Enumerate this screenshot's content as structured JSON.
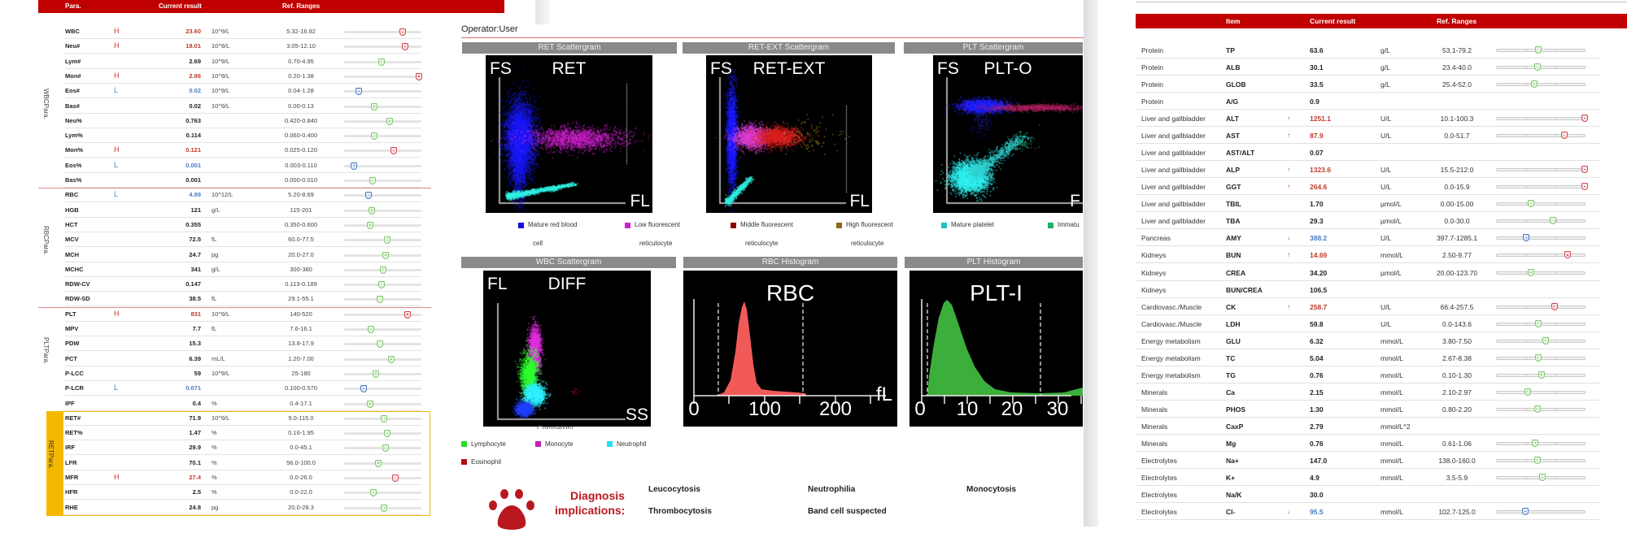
{
  "cbc": {
    "header": {
      "para": "Para.",
      "current": "Current result",
      "ref": "Ref. Ranges"
    },
    "groups": {
      "wbc": [
        "WBC",
        "Para."
      ],
      "rbc": [
        "RBC",
        "Para."
      ],
      "plt": [
        "PLT",
        "Para."
      ],
      "ret": [
        "RET",
        "Para."
      ]
    },
    "rows": [
      {
        "name": "WBC",
        "flag": "H",
        "value": "23.60",
        "unit": "10^9/L",
        "range": "5.32-16.92",
        "status": "high",
        "gauge": 0.76
      },
      {
        "name": "Neu#",
        "flag": "H",
        "value": "18.01",
        "unit": "10^9/L",
        "range": "3.05-12.10",
        "status": "high",
        "gauge": 0.79
      },
      {
        "name": "Lym#",
        "flag": "",
        "value": "2.69",
        "unit": "10^9/L",
        "range": "0.70-4.95",
        "status": "normal",
        "gauge": 0.48
      },
      {
        "name": "Mon#",
        "flag": "H",
        "value": "2.86",
        "unit": "10^9/L",
        "range": "0.20-1.38",
        "status": "high",
        "gauge": 0.97
      },
      {
        "name": "Eos#",
        "flag": "L",
        "value": "0.02",
        "unit": "10^9/L",
        "range": "0.04-1.28",
        "status": "low",
        "gauge": 0.19
      },
      {
        "name": "Bas#",
        "flag": "",
        "value": "0.02",
        "unit": "10^9/L",
        "range": "0.00-0.13",
        "status": "normal",
        "gauge": 0.39
      },
      {
        "name": "Neu%",
        "flag": "",
        "value": "0.763",
        "unit": "",
        "range": "0.420-0.840",
        "status": "normal",
        "gauge": 0.59
      },
      {
        "name": "Lym%",
        "flag": "",
        "value": "0.114",
        "unit": "",
        "range": "0.060-0.400",
        "status": "normal",
        "gauge": 0.39
      },
      {
        "name": "Mon%",
        "flag": "H",
        "value": "0.121",
        "unit": "",
        "range": "0.025-0.120",
        "status": "high",
        "gauge": 0.64
      },
      {
        "name": "Eos%",
        "flag": "L",
        "value": "0.001",
        "unit": "",
        "range": "0.003-0.110",
        "status": "low",
        "gauge": 0.13
      },
      {
        "name": "Bas%",
        "flag": "",
        "value": "0.001",
        "unit": "",
        "range": "0.000-0.010",
        "status": "normal",
        "gauge": 0.37
      },
      {
        "name": "RBC",
        "flag": "L",
        "value": "4.89",
        "unit": "10^12/L",
        "range": "5.20-8.69",
        "status": "low",
        "gauge": 0.32
      },
      {
        "name": "HGB",
        "flag": "",
        "value": "121",
        "unit": "g/L",
        "range": "115-201",
        "status": "normal",
        "gauge": 0.36
      },
      {
        "name": "HCT",
        "flag": "",
        "value": "0.355",
        "unit": "",
        "range": "0.350-0.600",
        "status": "normal",
        "gauge": 0.34
      },
      {
        "name": "MCV",
        "flag": "",
        "value": "72.5",
        "unit": "fL",
        "range": "60.0-77.5",
        "status": "normal",
        "gauge": 0.56
      },
      {
        "name": "MCH",
        "flag": "",
        "value": "24.7",
        "unit": "pg",
        "range": "20.0-27.0",
        "status": "normal",
        "gauge": 0.54
      },
      {
        "name": "MCHC",
        "flag": "",
        "value": "341",
        "unit": "g/L",
        "range": "300-380",
        "status": "normal",
        "gauge": 0.5
      },
      {
        "name": "RDW-CV",
        "flag": "",
        "value": "0.147",
        "unit": "",
        "range": "0.113-0.189",
        "status": "normal",
        "gauge": 0.48
      },
      {
        "name": "RDW-SD",
        "flag": "",
        "value": "38.5",
        "unit": "fL",
        "range": "29.1-55.1",
        "status": "normal",
        "gauge": 0.46
      },
      {
        "name": "PLT",
        "flag": "H",
        "value": "831",
        "unit": "10^9/L",
        "range": "140-520",
        "status": "high",
        "gauge": 0.82
      },
      {
        "name": "MPV",
        "flag": "",
        "value": "7.7",
        "unit": "fL",
        "range": "7.6-16.1",
        "status": "normal",
        "gauge": 0.35
      },
      {
        "name": "PDW",
        "flag": "",
        "value": "15.3",
        "unit": "",
        "range": "13.8-17.9",
        "status": "normal",
        "gauge": 0.46
      },
      {
        "name": "PCT",
        "flag": "",
        "value": "6.39",
        "unit": "mL/L",
        "range": "1.20-7.00",
        "status": "normal",
        "gauge": 0.61
      },
      {
        "name": "P-LCC",
        "flag": "",
        "value": "59",
        "unit": "10^9/L",
        "range": "25-180",
        "status": "normal",
        "gauge": 0.41
      },
      {
        "name": "P-LCR",
        "flag": "L",
        "value": "0.071",
        "unit": "",
        "range": "0.100-0.570",
        "status": "low",
        "gauge": 0.25
      },
      {
        "name": "IPF",
        "flag": "",
        "value": "0.4",
        "unit": "%",
        "range": "0.4-17.1",
        "status": "normal",
        "gauge": 0.34
      },
      {
        "name": "RET#",
        "flag": "",
        "value": "71.9",
        "unit": "10^9/L",
        "range": "9.0-115.0",
        "status": "normal",
        "gauge": 0.52
      },
      {
        "name": "RET%",
        "flag": "",
        "value": "1.47",
        "unit": "%",
        "range": "0.16-1.95",
        "status": "normal",
        "gauge": 0.56
      },
      {
        "name": "IRF",
        "flag": "",
        "value": "29.9",
        "unit": "%",
        "range": "0.0-45.1",
        "status": "normal",
        "gauge": 0.54
      },
      {
        "name": "LFR",
        "flag": "",
        "value": "70.1",
        "unit": "%",
        "range": "56.0-100.0",
        "status": "normal",
        "gauge": 0.44
      },
      {
        "name": "MFR",
        "flag": "H",
        "value": "27.4",
        "unit": "%",
        "range": "0.0-26.0",
        "status": "high",
        "gauge": 0.66
      },
      {
        "name": "HFR",
        "flag": "",
        "value": "2.5",
        "unit": "%",
        "range": "0.0-22.0",
        "status": "normal",
        "gauge": 0.38
      },
      {
        "name": "RHE",
        "flag": "",
        "value": "24.8",
        "unit": "pg",
        "range": "20.0-28.3",
        "status": "normal",
        "gauge": 0.52
      }
    ]
  },
  "graphs": {
    "operator": "Operator:User",
    "ret": {
      "title": "RET Scattergram",
      "y": "FS",
      "name": "RET",
      "x": "FL"
    },
    "retext": {
      "title": "RET-EXT Scattergram",
      "y": "FS",
      "name": "RET-EXT",
      "x": "FL"
    },
    "plt": {
      "title": "PLT Scattergram",
      "y": "FS",
      "name": "PLT-O",
      "x": "F"
    },
    "wbc": {
      "title": "WBC Scattergram",
      "y": "FL",
      "name": "DIFF",
      "x": "SS",
      "xsub": "Complexity"
    },
    "rbchist": {
      "title": "RBC Histogram",
      "name": "RBC",
      "unit": "fL",
      "ticks": [
        "0",
        "100",
        "200"
      ]
    },
    "plthist": {
      "title": "PLT Histogram",
      "name": "PLT-I",
      "ticks": [
        "0",
        "10",
        "20",
        "30"
      ]
    },
    "legend_top": [
      {
        "l1": "Mature red blood",
        "l2": "cell",
        "color": "#1010e0"
      },
      {
        "l1": "Low fluorescent",
        "l2": "reticulocyte",
        "color": "#d020d0"
      },
      {
        "l1": "Middle fluorescent",
        "l2": "reticulocyte",
        "color": "#8b0000"
      },
      {
        "l1": "High fluorescent",
        "l2": "reticulocyte",
        "color": "#8b6914"
      },
      {
        "l1": "Mature platelet",
        "l2": "",
        "color": "#20c0c8"
      },
      {
        "l1": "Immatu",
        "l2": "",
        "color": "#20b060"
      }
    ],
    "legend_wbc": [
      {
        "label": "Lymphocyte",
        "color": "#20e020"
      },
      {
        "label": "Monocyte",
        "color": "#c020c0"
      },
      {
        "label": "Neutrophil",
        "color": "#20e0f0"
      },
      {
        "label": "Eosinophil",
        "color": "#b01010"
      }
    ],
    "diagnosis": {
      "title1": "Diagnosis",
      "title2": "implications:",
      "items": [
        "Leucocytosis",
        "Neutrophilia",
        "Monocytosis",
        "Thrombocytosis",
        "Band cell suspected"
      ]
    }
  },
  "chem": {
    "header": {
      "item": "Item",
      "current": "Current result",
      "ref": "Ref. Ranges"
    },
    "rows": [
      {
        "cat": "Protein",
        "item": "TP",
        "arrow": "",
        "value": "63.6",
        "unit": "g/L",
        "range": "53.1-79.2",
        "status": "normal",
        "gauge": 0.47
      },
      {
        "cat": "Protein",
        "item": "ALB",
        "arrow": "",
        "value": "30.1",
        "unit": "g/L",
        "range": "23.4-40.0",
        "status": "normal",
        "gauge": 0.46
      },
      {
        "cat": "Protein",
        "item": "GLOB",
        "arrow": "",
        "value": "33.5",
        "unit": "g/L",
        "range": "25.4-52.0",
        "status": "normal",
        "gauge": 0.43
      },
      {
        "cat": "Protein",
        "item": "A/G",
        "arrow": "",
        "value": "0.9",
        "unit": "",
        "range": "",
        "status": "normal",
        "gauge": null
      },
      {
        "cat": "Liver and gallbladder",
        "item": "ALT",
        "arrow": "↑",
        "value": "1251.1",
        "unit": "U/L",
        "range": "10.1-100.3",
        "status": "high",
        "gauge": 0.99
      },
      {
        "cat": "Liver and gallbladder",
        "item": "AST",
        "arrow": "↑",
        "value": "87.9",
        "unit": "U/L",
        "range": "0.0-51.7",
        "status": "high",
        "gauge": 0.76
      },
      {
        "cat": "Liver and gallbladder",
        "item": "AST/ALT",
        "arrow": "",
        "value": "0.07",
        "unit": "",
        "range": "",
        "status": "normal",
        "gauge": null
      },
      {
        "cat": "Liver and gallbladder",
        "item": "ALP",
        "arrow": "↑",
        "value": "1323.6",
        "unit": "U/L",
        "range": "15.5-212.0",
        "status": "high",
        "gauge": 0.99
      },
      {
        "cat": "Liver and gallbladder",
        "item": "GGT",
        "arrow": "↑",
        "value": "264.6",
        "unit": "U/L",
        "range": "0.0-15.9",
        "status": "high",
        "gauge": 0.99
      },
      {
        "cat": "Liver and gallbladder",
        "item": "TBIL",
        "arrow": "",
        "value": "1.70",
        "unit": "µmol/L",
        "range": "0.00-15.00",
        "status": "normal",
        "gauge": 0.39
      },
      {
        "cat": "Liver and gallbladder",
        "item": "TBA",
        "arrow": "",
        "value": "29.3",
        "unit": "µmol/L",
        "range": "0.0-30.0",
        "status": "normal",
        "gauge": 0.64
      },
      {
        "cat": "Pancreas",
        "item": "AMY",
        "arrow": "↓",
        "value": "388.2",
        "unit": "U/L",
        "range": "397.7-1285.1",
        "status": "low",
        "gauge": 0.34
      },
      {
        "cat": "Kidneys",
        "item": "BUN",
        "arrow": "↑",
        "value": "14.69",
        "unit": "mmol/L",
        "range": "2.50-9.77",
        "status": "high",
        "gauge": 0.8
      },
      {
        "cat": "Kidneys",
        "item": "CREA",
        "arrow": "",
        "value": "34.20",
        "unit": "µmol/L",
        "range": "20.00-123.70",
        "status": "normal",
        "gauge": 0.39
      },
      {
        "cat": "Kidneys",
        "item": "BUN/CREA",
        "arrow": "",
        "value": "106.5",
        "unit": "",
        "range": "",
        "status": "normal",
        "gauge": null
      },
      {
        "cat": "Cardiovasc./Muscle",
        "item": "CK",
        "arrow": "↑",
        "value": "258.7",
        "unit": "U/L",
        "range": "66.4-257.5",
        "status": "high",
        "gauge": 0.65
      },
      {
        "cat": "Cardiovasc./Muscle",
        "item": "LDH",
        "arrow": "",
        "value": "59.8",
        "unit": "U/L",
        "range": "0.0-143.6",
        "status": "normal",
        "gauge": 0.47
      },
      {
        "cat": "Energy metabolism",
        "item": "GLU",
        "arrow": "",
        "value": "6.32",
        "unit": "mmol/L",
        "range": "3.80-7.50",
        "status": "normal",
        "gauge": 0.55
      },
      {
        "cat": "Energy metabolism",
        "item": "TC",
        "arrow": "",
        "value": "5.04",
        "unit": "mmol/L",
        "range": "2.67-8.38",
        "status": "normal",
        "gauge": 0.47
      },
      {
        "cat": "Energy metabolism",
        "item": "TG",
        "arrow": "",
        "value": "0.76",
        "unit": "mmol/L",
        "range": "0.10-1.30",
        "status": "normal",
        "gauge": 0.51
      },
      {
        "cat": "Minerals",
        "item": "Ca",
        "arrow": "",
        "value": "2.15",
        "unit": "mmol/L",
        "range": "2.10-2.97",
        "status": "normal",
        "gauge": 0.35
      },
      {
        "cat": "Minerals",
        "item": "PHOS",
        "arrow": "",
        "value": "1.30",
        "unit": "mmol/L",
        "range": "0.80-2.20",
        "status": "normal",
        "gauge": 0.46
      },
      {
        "cat": "Minerals",
        "item": "CaxP",
        "arrow": "",
        "value": "2.79",
        "unit": "mmol/L^2",
        "range": "",
        "status": "normal",
        "gauge": null
      },
      {
        "cat": "Minerals",
        "item": "Mg",
        "arrow": "",
        "value": "0.76",
        "unit": "mmol/L",
        "range": "0.61-1.06",
        "status": "normal",
        "gauge": 0.44
      },
      {
        "cat": "Electrolytes",
        "item": "Na+",
        "arrow": "",
        "value": "147.0",
        "unit": "mmol/L",
        "range": "138.0-160.0",
        "status": "normal",
        "gauge": 0.46
      },
      {
        "cat": "Electrolytes",
        "item": "K+",
        "arrow": "",
        "value": "4.9",
        "unit": "mmol/L",
        "range": "3.5-5.9",
        "status": "normal",
        "gauge": 0.52
      },
      {
        "cat": "Electrolytes",
        "item": "Na/K",
        "arrow": "",
        "value": "30.0",
        "unit": "",
        "range": "",
        "status": "normal",
        "gauge": null
      },
      {
        "cat": "Electrolytes",
        "item": "Cl-",
        "arrow": "↓",
        "value": "95.5",
        "unit": "mmol/L",
        "range": "102.7-125.0",
        "status": "low",
        "gauge": 0.33
      }
    ]
  }
}
